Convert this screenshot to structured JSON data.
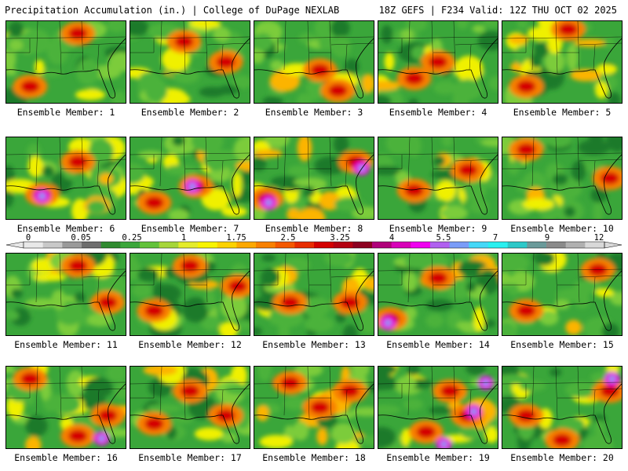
{
  "header": {
    "title_left": "Precipitation Accumulation (in.) | College of DuPage NEXLAB",
    "title_right": "18Z GEFS | F234 Valid: 12Z THU OCT 02 2025"
  },
  "colorbar": {
    "tick_labels": [
      "0",
      "0.05",
      "0.25",
      "1",
      "1.75",
      "2.5",
      "3.25",
      "4",
      "5.5",
      "7",
      "9",
      "12"
    ],
    "colors": [
      "#e8e8e8",
      "#c8c8c8",
      "#9a9a9a",
      "#6e6e6e",
      "#2f8a2f",
      "#3aa63a",
      "#62c23a",
      "#a6d63a",
      "#e4ec2c",
      "#f8f400",
      "#fcd200",
      "#fca800",
      "#f88000",
      "#f45800",
      "#e82c00",
      "#d40000",
      "#b40010",
      "#8c0020",
      "#b0007a",
      "#d800b8",
      "#f000f0",
      "#b060f0",
      "#7a9cf8",
      "#44d8f8",
      "#28f0f0",
      "#2cc8c8",
      "#6a9a9a",
      "#8a8a8a",
      "#b0b0b0",
      "#d8d8d8"
    ]
  },
  "panels": [
    {
      "label": "Ensemble Member: 1",
      "wetness": 0.5,
      "hot": [
        [
          0.6,
          0.15
        ],
        [
          0.2,
          0.8
        ]
      ]
    },
    {
      "label": "Ensemble Member: 2",
      "wetness": 0.45,
      "hot": [
        [
          0.45,
          0.25
        ],
        [
          0.8,
          0.5
        ]
      ]
    },
    {
      "label": "Ensemble Member: 3",
      "wetness": 0.5,
      "hot": [
        [
          0.7,
          0.85
        ],
        [
          0.55,
          0.6
        ]
      ]
    },
    {
      "label": "Ensemble Member: 4",
      "wetness": 0.4,
      "hot": [
        [
          0.5,
          0.5
        ],
        [
          0.3,
          0.7
        ]
      ]
    },
    {
      "label": "Ensemble Member: 5",
      "wetness": 0.6,
      "hot": [
        [
          0.55,
          0.1
        ],
        [
          0.2,
          0.8
        ]
      ]
    },
    {
      "label": "Ensemble Member: 6",
      "wetness": 0.65,
      "hot": [
        [
          0.3,
          0.7
        ],
        [
          0.6,
          0.3
        ]
      ],
      "magenta": [
        [
          0.3,
          0.72
        ]
      ]
    },
    {
      "label": "Ensemble Member: 7",
      "wetness": 0.6,
      "hot": [
        [
          0.55,
          0.6
        ],
        [
          0.2,
          0.8
        ]
      ],
      "magenta": [
        [
          0.52,
          0.6
        ]
      ]
    },
    {
      "label": "Ensemble Member: 8",
      "wetness": 0.7,
      "hot": [
        [
          0.1,
          0.75
        ],
        [
          0.85,
          0.3
        ]
      ],
      "magenta": [
        [
          0.12,
          0.8
        ],
        [
          0.9,
          0.38
        ]
      ]
    },
    {
      "label": "Ensemble Member: 9",
      "wetness": 0.55,
      "hot": [
        [
          0.3,
          0.65
        ],
        [
          0.75,
          0.4
        ]
      ]
    },
    {
      "label": "Ensemble Member: 10",
      "wetness": 0.6,
      "hot": [
        [
          0.9,
          0.5
        ],
        [
          0.2,
          0.15
        ]
      ]
    },
    {
      "label": "Ensemble Member: 11",
      "wetness": 0.5,
      "hot": [
        [
          0.6,
          0.15
        ],
        [
          0.85,
          0.6
        ]
      ]
    },
    {
      "label": "Ensemble Member: 12",
      "wetness": 0.6,
      "hot": [
        [
          0.5,
          0.15
        ],
        [
          0.2,
          0.7
        ],
        [
          0.9,
          0.4
        ]
      ]
    },
    {
      "label": "Ensemble Member: 13",
      "wetness": 0.65,
      "hot": [
        [
          0.8,
          0.6
        ],
        [
          0.3,
          0.6
        ]
      ]
    },
    {
      "label": "Ensemble Member: 14",
      "wetness": 0.65,
      "hot": [
        [
          0.1,
          0.8
        ],
        [
          0.5,
          0.3
        ]
      ],
      "magenta": [
        [
          0.08,
          0.85
        ]
      ]
    },
    {
      "label": "Ensemble Member: 15",
      "wetness": 0.45,
      "hot": [
        [
          0.2,
          0.7
        ],
        [
          0.8,
          0.2
        ]
      ]
    },
    {
      "label": "Ensemble Member: 16",
      "wetness": 0.7,
      "hot": [
        [
          0.85,
          0.6
        ],
        [
          0.2,
          0.15
        ],
        [
          0.6,
          0.85
        ]
      ],
      "magenta": [
        [
          0.8,
          0.88
        ]
      ]
    },
    {
      "label": "Ensemble Member: 17",
      "wetness": 0.6,
      "hot": [
        [
          0.5,
          0.3
        ],
        [
          0.8,
          0.6
        ],
        [
          0.2,
          0.7
        ]
      ]
    },
    {
      "label": "Ensemble Member: 18",
      "wetness": 0.75,
      "hot": [
        [
          0.55,
          0.5
        ],
        [
          0.3,
          0.2
        ],
        [
          0.8,
          0.3
        ]
      ]
    },
    {
      "label": "Ensemble Member: 19",
      "wetness": 0.85,
      "hot": [
        [
          0.75,
          0.6
        ],
        [
          0.4,
          0.8
        ],
        [
          0.6,
          0.3
        ]
      ],
      "magenta": [
        [
          0.8,
          0.55
        ],
        [
          0.9,
          0.2
        ],
        [
          0.55,
          0.95
        ]
      ]
    },
    {
      "label": "Ensemble Member: 20",
      "wetness": 0.75,
      "hot": [
        [
          0.9,
          0.3
        ],
        [
          0.5,
          0.9
        ],
        [
          0.2,
          0.6
        ]
      ],
      "magenta": [
        [
          0.92,
          0.15
        ]
      ]
    }
  ]
}
